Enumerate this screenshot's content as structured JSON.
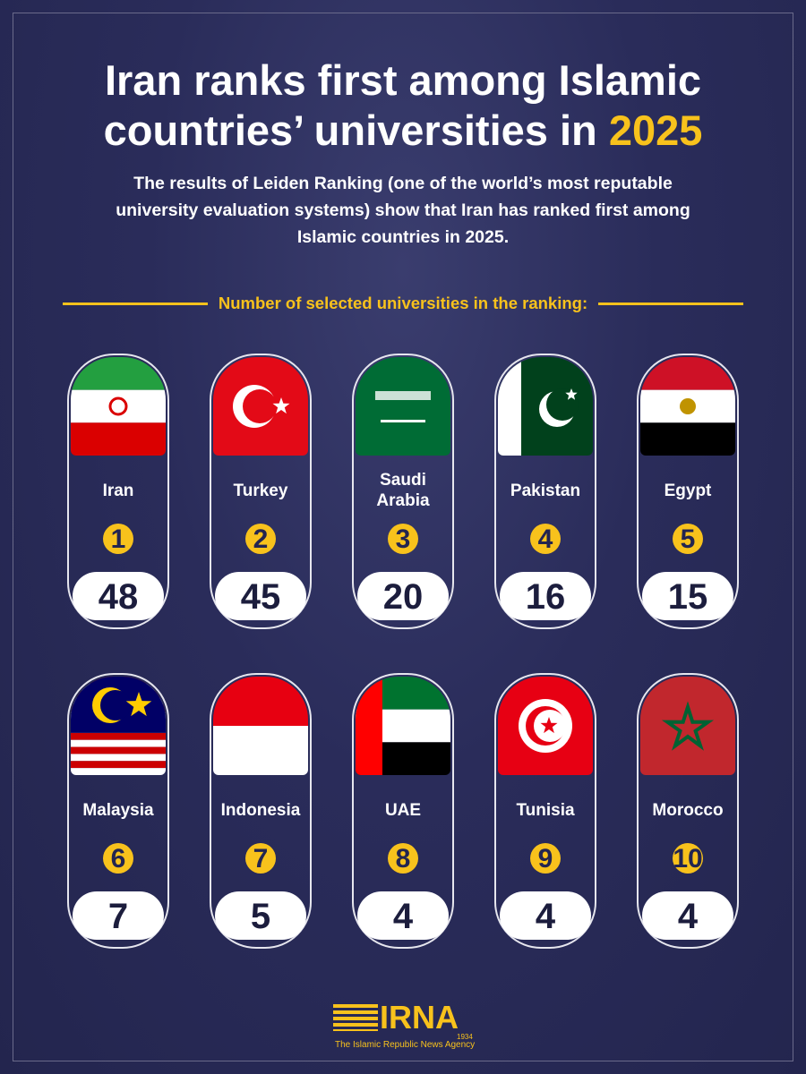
{
  "header": {
    "title_main": "Iran ranks first among Islamic countries’ universities in",
    "title_highlight": "2025",
    "subtitle": "The results of Leiden Ranking  (one of the world’s most reputable university evaluation systems) show that Iran has ranked first among Islamic countries in 2025.",
    "section_label": "Number of selected universities in the ranking:"
  },
  "countries": [
    {
      "name": "Iran",
      "rank": 1,
      "count": 48
    },
    {
      "name": "Turkey",
      "rank": 2,
      "count": 45
    },
    {
      "name": "Saudi Arabia",
      "rank": 3,
      "count": 20
    },
    {
      "name": "Pakistan",
      "rank": 4,
      "count": 16
    },
    {
      "name": "Egypt",
      "rank": 5,
      "count": 15
    },
    {
      "name": "Malaysia",
      "rank": 6,
      "count": 7
    },
    {
      "name": "Indonesia",
      "rank": 7,
      "count": 5
    },
    {
      "name": "UAE",
      "rank": 8,
      "count": 4
    },
    {
      "name": "Tunisia",
      "rank": 9,
      "count": 4
    },
    {
      "name": "Morocco",
      "rank": 10,
      "count": 4
    }
  ],
  "footer": {
    "logo": "IRNA",
    "year": "1934",
    "tagline": "The Islamic Republic News Agency"
  }
}
